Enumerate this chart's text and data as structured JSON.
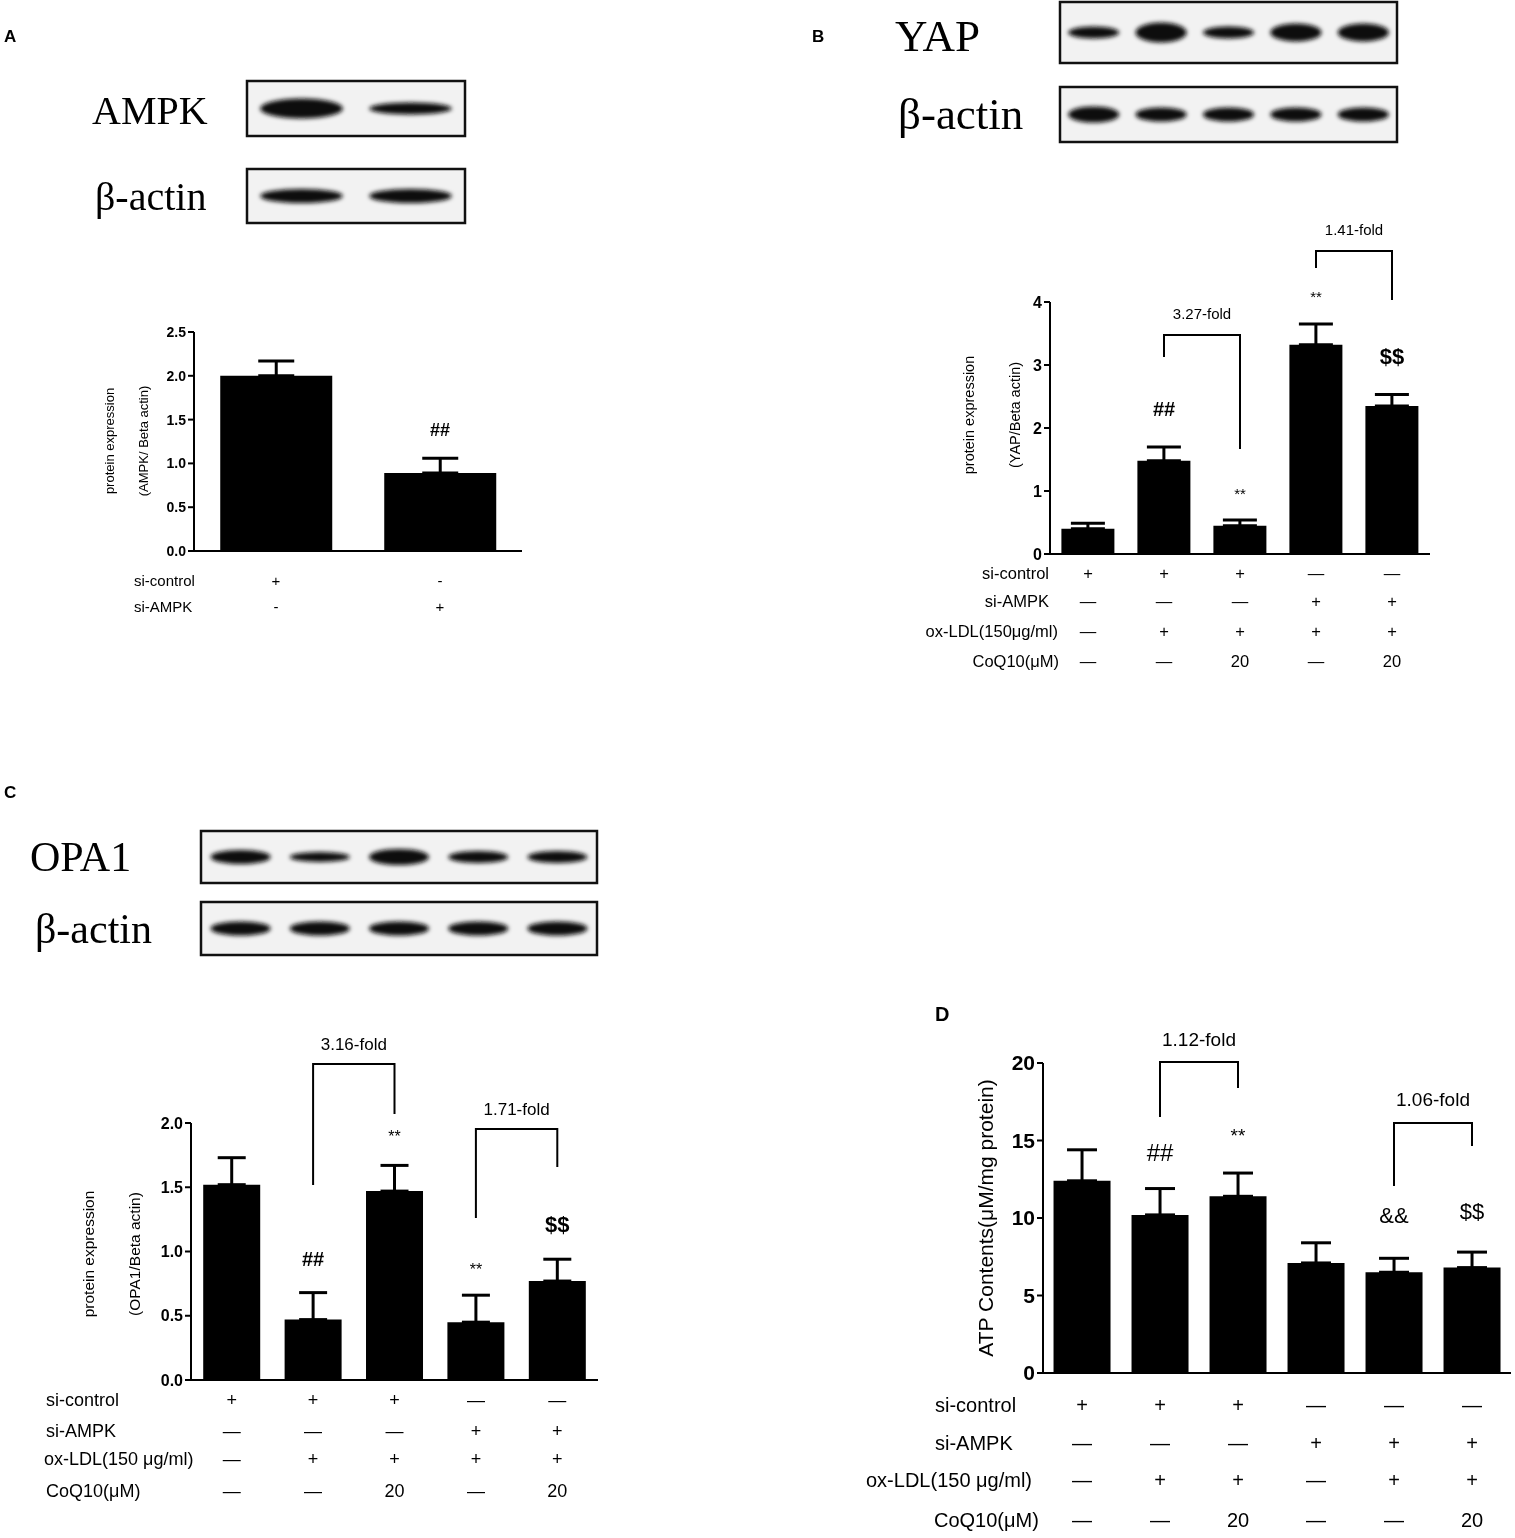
{
  "chart_data": [
    {
      "type": "bar",
      "ylabel": "protein expression\n(AMPK/ Beta actin)",
      "categories": [
        "+\n-",
        "-\n+"
      ],
      "values": [
        2.0,
        0.89
      ],
      "color": "#000000",
      "errors": [
        [
          2.0,
          2.17
        ],
        [
          0.89,
          1.06
        ]
      ],
      "ylim": [
        0,
        2.5
      ],
      "yticks": [
        {
          "value": 0,
          "label": "0.0"
        },
        0.5,
        {
          "value": 1,
          "label": "1.0"
        },
        1.5,
        {
          "value": 2,
          "label": "2.0"
        },
        2.5
      ],
      "annotations": [
        "A",
        "AMPK",
        "β-actin",
        "si-control",
        "si-AMPK",
        {
          "text": "##",
          "x": "-\n+",
          "y": 1.06
        }
      ]
    },
    {
      "type": "bar",
      "ylabel": "protein expression\n(YAP/Beta actin)",
      "categories": [
        "+\n—\n—\n—",
        "+\n—\n+\n—",
        "+\n—\n+\n20",
        "—\n+\n+\n—",
        "—\n+\n+\n20"
      ],
      "values": [
        0.4,
        1.48,
        0.45,
        3.32,
        2.35
      ],
      "color": "#000000",
      "errors": [
        [
          0.4,
          0.49
        ],
        [
          1.48,
          1.7
        ],
        [
          0.45,
          0.54
        ],
        [
          3.32,
          3.65
        ],
        [
          2.35,
          2.53
        ]
      ],
      "ylim": [
        0,
        4
      ],
      "yticks": [
        0,
        1,
        2,
        3,
        4
      ],
      "annotations": [
        "B",
        "YAP",
        "β-actin",
        "si-control",
        "si-AMPK",
        "ox-LDL(150μg/ml)",
        "CoQ10(μM)",
        {
          "text": "##",
          "x": "+\n—\n+\n—",
          "y": 1.7
        },
        {
          "text": "**",
          "x": "+\n—\n+\n20",
          "y": 0.54
        },
        {
          "text": "**",
          "x": "—\n+\n+\n—",
          "y": 3.65
        },
        {
          "text": "$$",
          "x": "—\n+\n+\n20",
          "y": 2.53
        },
        "3.27-fold",
        "1.41-fold"
      ]
    },
    {
      "type": "bar",
      "ylabel": "protein expression\n(OPA1/Beta actin)",
      "categories": [
        "+\n—\n—\n—",
        "+\n—\n+\n—",
        "+\n—\n+\n20",
        "—\n+\n+\n—",
        "—\n+\n+\n20"
      ],
      "values": [
        1.52,
        0.47,
        1.47,
        0.45,
        0.77
      ],
      "color": "#000000",
      "errors": [
        [
          1.52,
          1.73
        ],
        [
          0.47,
          0.68
        ],
        [
          1.47,
          1.67
        ],
        [
          0.45,
          0.66
        ],
        [
          0.77,
          0.94
        ]
      ],
      "ylim": [
        0,
        2
      ],
      "yticks": [
        {
          "value": 0,
          "label": "0.0"
        },
        0.5,
        {
          "value": 1,
          "label": "1.0"
        },
        1.5,
        {
          "value": 2,
          "label": "2.0"
        }
      ],
      "annotations": [
        "C",
        "OPA1",
        "β-actin",
        "si-control",
        "si-AMPK",
        "ox-LDL(150 μg/ml)",
        "CoQ10(μM)",
        {
          "text": "##",
          "x": "+\n—\n+\n—",
          "y": 0.68
        },
        {
          "text": "**",
          "x": "+\n—\n+\n20",
          "y": 1.67
        },
        {
          "text": "**",
          "x": "—\n+\n+\n—",
          "y": 0.66
        },
        {
          "text": "$$",
          "x": "—\n+\n+\n20",
          "y": 0.94
        },
        "3.16-fold",
        "1.71-fold"
      ]
    },
    {
      "type": "bar",
      "ylabel": "ATP Contents(μM/mg protein)",
      "categories": [
        "+\n—\n—\n—",
        "+\n—\n+\n—",
        "+\n—\n+\n20",
        "—\n+\n—\n—",
        "—\n+\n+\n—",
        "—\n+\n+\n20"
      ],
      "values": [
        12.4,
        10.2,
        11.4,
        7.1,
        6.5,
        6.8
      ],
      "color": "#000000",
      "errors": [
        [
          12.4,
          14.4
        ],
        [
          10.2,
          11.9
        ],
        [
          11.4,
          12.9
        ],
        [
          7.1,
          8.4
        ],
        [
          6.5,
          7.4
        ],
        [
          6.8,
          7.8
        ]
      ],
      "ylim": [
        0,
        20
      ],
      "yticks": [
        0,
        5,
        10,
        15,
        20
      ],
      "annotations": [
        "D",
        "si-control",
        "si-AMPK",
        "ox-LDL(150 μg/ml)",
        "CoQ10(μM)",
        {
          "text": "##",
          "x": "+\n—\n+\n—",
          "y": 11.9
        },
        {
          "text": "**",
          "x": "+\n—\n+\n20",
          "y": 12.9
        },
        {
          "text": "&&",
          "x": "—\n+\n+\n—",
          "y": 7.4
        },
        {
          "text": "$$",
          "x": "—\n+\n+\n20",
          "y": 7.8
        },
        "1.12-fold",
        "1.06-fold"
      ]
    }
  ]
}
